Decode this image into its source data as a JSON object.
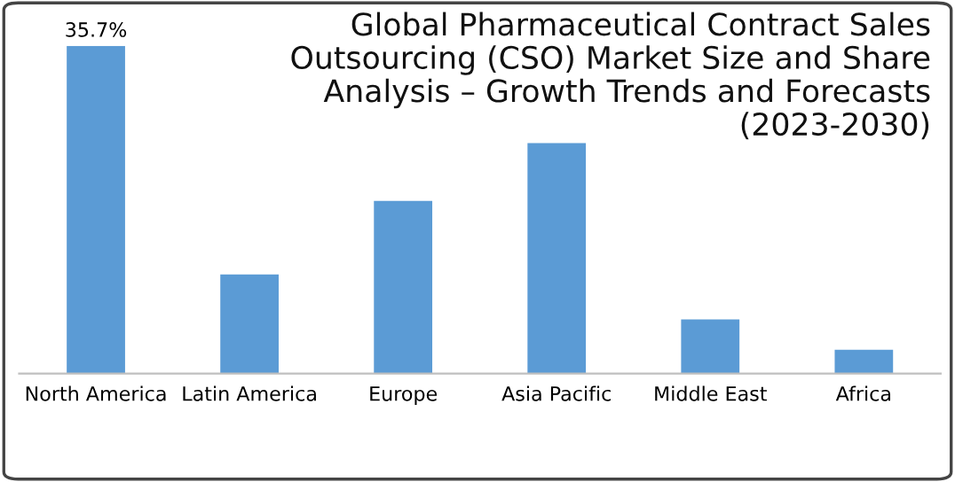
{
  "chart_data": {
    "type": "bar",
    "title": "Global Pharmaceutical Contract Sales\nOutsourcing (CSO) Market Size and Share\nAnalysis – Growth Trends and Forecasts\n(2023-2030)",
    "categories": [
      "North America",
      "Latin America",
      "Europe",
      "Asia Pacific",
      "Middle East",
      "Africa"
    ],
    "values": [
      35.7,
      10.8,
      18.8,
      25.1,
      5.9,
      2.6
    ],
    "value_labels": [
      "35.7%",
      null,
      null,
      null,
      null,
      null
    ],
    "color": "#5b9bd5",
    "grid": false,
    "legend": false
  }
}
